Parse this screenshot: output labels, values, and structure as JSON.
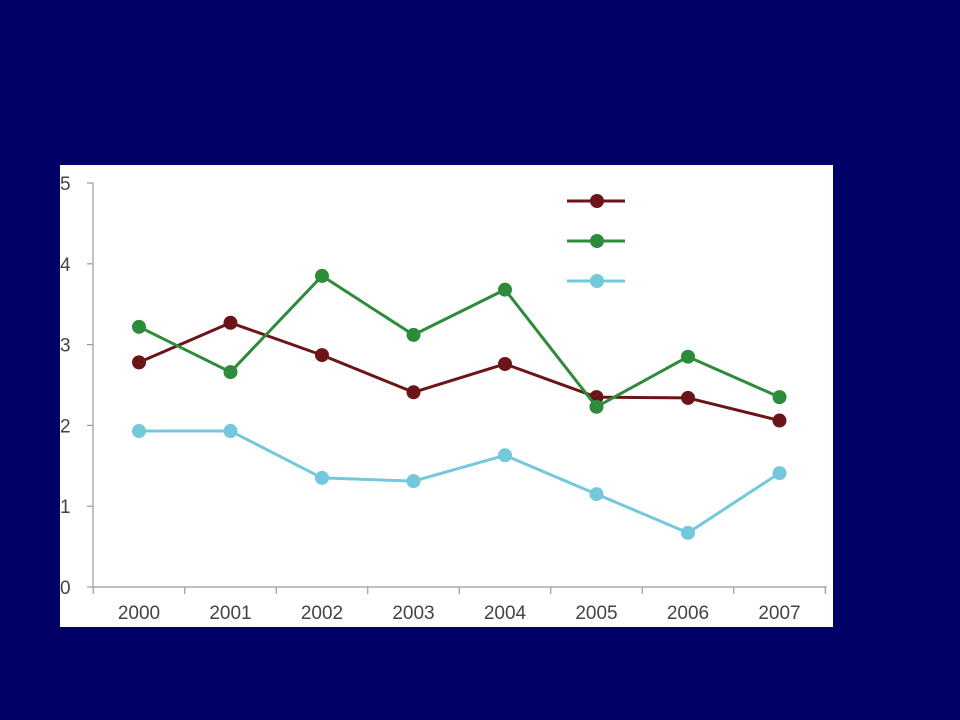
{
  "slide": {
    "background": "#000066"
  },
  "chart_data": {
    "type": "line",
    "title": "",
    "xlabel": "",
    "ylabel": "",
    "x": [
      "2000",
      "2001",
      "2002",
      "2003",
      "2004",
      "2005",
      "2006",
      "2007"
    ],
    "ylim": [
      0,
      5
    ],
    "yticks": [
      0,
      1,
      2,
      3,
      4,
      5
    ],
    "grid": false,
    "legend_position": "top-right",
    "series": [
      {
        "color": "#6b1518",
        "values": [
          2.78,
          3.27,
          2.87,
          2.41,
          2.76,
          2.35,
          2.34,
          2.06
        ]
      },
      {
        "color": "#2e8b3a",
        "values": [
          3.22,
          2.66,
          3.85,
          3.12,
          3.68,
          2.23,
          2.85,
          2.35
        ]
      },
      {
        "color": "#74c8dc",
        "values": [
          1.93,
          1.93,
          1.35,
          1.31,
          1.63,
          1.15,
          0.67,
          1.41
        ]
      }
    ]
  }
}
